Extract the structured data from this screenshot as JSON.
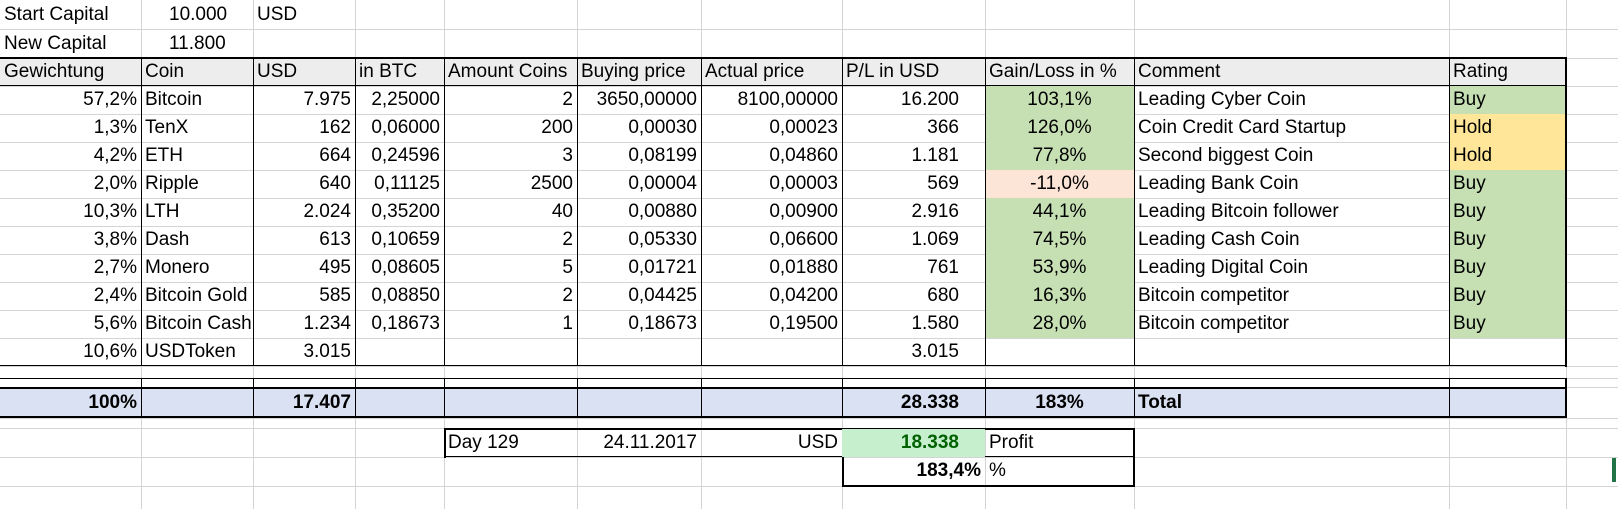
{
  "top": {
    "start_label": "Start Capital",
    "start_value": "10.000",
    "start_currency": "USD",
    "new_label": "New Capital",
    "new_value": "11.800"
  },
  "headers": [
    "Gewichtung",
    "Coin",
    "USD",
    "in BTC",
    "Amount Coins",
    "Buying price",
    "Actual price",
    "P/L in USD",
    "Gain/Loss in %",
    "Comment",
    "Rating"
  ],
  "rows": [
    {
      "w": "57,2%",
      "coin": "Bitcoin",
      "usd": "7.975",
      "btc": "2,25000",
      "amt": "2",
      "buy": "3650,00000",
      "act": "8100,00000",
      "pl": "16.200",
      "gl": "103,1%",
      "comment": "Leading Cyber Coin",
      "rating": "Buy"
    },
    {
      "w": "1,3%",
      "coin": "TenX",
      "usd": "162",
      "btc": "0,06000",
      "amt": "200",
      "buy": "0,00030",
      "act": "0,00023",
      "pl": "366",
      "gl": "126,0%",
      "comment": "Coin Credit Card Startup",
      "rating": "Hold"
    },
    {
      "w": "4,2%",
      "coin": "ETH",
      "usd": "664",
      "btc": "0,24596",
      "amt": "3",
      "buy": "0,08199",
      "act": "0,04860",
      "pl": "1.181",
      "gl": "77,8%",
      "comment": "Second biggest Coin",
      "rating": "Hold"
    },
    {
      "w": "2,0%",
      "coin": "Ripple",
      "usd": "640",
      "btc": "0,11125",
      "amt": "2500",
      "buy": "0,00004",
      "act": "0,00003",
      "pl": "569",
      "gl": "-11,0%",
      "comment": "Leading Bank Coin",
      "rating": "Buy"
    },
    {
      "w": "10,3%",
      "coin": "LTH",
      "usd": "2.024",
      "btc": "0,35200",
      "amt": "40",
      "buy": "0,00880",
      "act": "0,00900",
      "pl": "2.916",
      "gl": "44,1%",
      "comment": "Leading Bitcoin follower",
      "rating": "Buy"
    },
    {
      "w": "3,8%",
      "coin": "Dash",
      "usd": "613",
      "btc": "0,10659",
      "amt": "2",
      "buy": "0,05330",
      "act": "0,06600",
      "pl": "1.069",
      "gl": "74,5%",
      "comment": "Leading Cash Coin",
      "rating": "Buy"
    },
    {
      "w": "2,7%",
      "coin": "Monero",
      "usd": "495",
      "btc": "0,08605",
      "amt": "5",
      "buy": "0,01721",
      "act": "0,01880",
      "pl": "761",
      "gl": "53,9%",
      "comment": "Leading Digital Coin",
      "rating": "Buy"
    },
    {
      "w": "2,4%",
      "coin": "Bitcoin Gold",
      "usd": "585",
      "btc": "0,08850",
      "amt": "2",
      "buy": "0,04425",
      "act": "0,04200",
      "pl": "680",
      "gl": "16,3%",
      "comment": "Bitcoin competitor",
      "rating": "Buy"
    },
    {
      "w": "5,6%",
      "coin": "Bitcoin Cash",
      "usd": "1.234",
      "btc": "0,18673",
      "amt": "1",
      "buy": "0,18673",
      "act": "0,19500",
      "pl": "1.580",
      "gl": "28,0%",
      "comment": "Bitcoin competitor",
      "rating": "Buy"
    },
    {
      "w": "10,6%",
      "coin": "USDToken",
      "usd": "3.015",
      "btc": "",
      "amt": "",
      "buy": "",
      "act": "",
      "pl": "3.015",
      "gl": "",
      "comment": "",
      "rating": ""
    }
  ],
  "rating_colors": {
    "Buy": "#c6e0b4",
    "Hold": "#ffe699"
  },
  "totals": {
    "w": "100%",
    "usd": "17.407",
    "pl": "28.338",
    "gl": "183%",
    "label": "Total"
  },
  "summary": {
    "day": "Day 129",
    "date": "24.11.2017",
    "currency": "USD",
    "profit_value": "18.338",
    "profit_label": "Profit",
    "pct_value": "183,4%",
    "pct_unit": "%"
  }
}
